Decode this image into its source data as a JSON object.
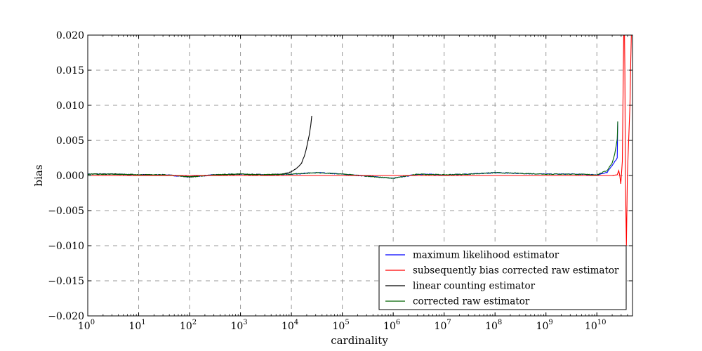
{
  "chart_data": {
    "type": "line",
    "title": "",
    "xlabel": "cardinality",
    "ylabel": "bias",
    "xscale": "log",
    "xlim_exp": [
      0,
      10.7
    ],
    "ylim": [
      -0.02,
      0.02
    ],
    "grid": true,
    "legend_position": "lower-right",
    "x_tick_labels": [
      {
        "base": "10",
        "exp": "0"
      },
      {
        "base": "10",
        "exp": "1"
      },
      {
        "base": "10",
        "exp": "2"
      },
      {
        "base": "10",
        "exp": "3"
      },
      {
        "base": "10",
        "exp": "4"
      },
      {
        "base": "10",
        "exp": "5"
      },
      {
        "base": "10",
        "exp": "6"
      },
      {
        "base": "10",
        "exp": "7"
      },
      {
        "base": "10",
        "exp": "8"
      },
      {
        "base": "10",
        "exp": "9"
      },
      {
        "base": "10",
        "exp": "10"
      }
    ],
    "y_tick_labels": [
      "0.020",
      "0.015",
      "0.010",
      "0.005",
      "0.000",
      "−0.005",
      "−0.010",
      "−0.015",
      "−0.020"
    ],
    "y_tick_values": [
      0.02,
      0.015,
      0.01,
      0.005,
      0,
      -0.005,
      -0.01,
      -0.015,
      -0.02
    ],
    "series": [
      {
        "name": "maximum likelihood estimator",
        "color": "#0000ff",
        "log10_x": [
          0,
          0.5,
          1,
          1.5,
          2,
          2.5,
          3,
          3.5,
          4,
          4.5,
          5,
          5.5,
          6,
          6.5,
          7,
          7.5,
          8,
          8.5,
          9,
          9.5,
          10,
          10.2,
          10.4,
          10.41
        ],
        "y": [
          0.0002,
          0.0002,
          0.0001,
          0.0001,
          -0.0002,
          0.0001,
          0.0002,
          0.0001,
          0.0002,
          0.0004,
          0.0002,
          -0.0001,
          -0.0004,
          0.0002,
          0.0001,
          0.0002,
          0.0004,
          0.0003,
          0.0002,
          0.0002,
          0.0001,
          0.0004,
          0.0025,
          0.0077
        ]
      },
      {
        "name": "subsequently bias corrected raw estimator",
        "color": "#ff0000",
        "log10_x": [
          0,
          2,
          4,
          6,
          8,
          10,
          10.3,
          10.4,
          10.43,
          10.45,
          10.47,
          10.5,
          10.52,
          10.54,
          10.56,
          10.58,
          10.6,
          10.65,
          10.7
        ],
        "y": [
          0,
          0,
          0,
          0,
          0,
          0,
          0,
          0.0001,
          0.0007,
          0,
          -0.0012,
          0.002,
          0.015,
          0.03,
          0.0,
          -0.01,
          0.0002,
          0.01,
          0.03
        ]
      },
      {
        "name": "linear counting estimator",
        "color": "#000000",
        "log10_x": [
          0,
          0.5,
          1,
          1.5,
          2,
          2.5,
          3,
          3.5,
          3.8,
          4,
          4.1,
          4.2,
          4.25,
          4.3,
          4.35,
          4.38,
          4.4
        ],
        "y": [
          0.0002,
          0.0002,
          0.0001,
          0.0001,
          -0.0002,
          0.0001,
          0.0002,
          0.0001,
          0.0002,
          0.0005,
          0.001,
          0.0018,
          0.0027,
          0.004,
          0.0057,
          0.0071,
          0.0085
        ]
      },
      {
        "name": "corrected raw estimator",
        "color": "#006400",
        "log10_x": [
          0,
          0.5,
          1,
          1.5,
          2,
          2.5,
          3,
          3.5,
          4,
          4.5,
          5,
          5.5,
          6,
          6.5,
          7,
          7.5,
          8,
          8.5,
          9,
          9.5,
          10,
          10.2,
          10.3,
          10.35,
          10.4,
          10.41
        ],
        "y": [
          0.0002,
          0.0002,
          0.0001,
          0.0001,
          -0.0002,
          0.0001,
          0.0002,
          0.0001,
          0.0002,
          0.0004,
          0.0002,
          -0.0001,
          -0.0004,
          0.0002,
          0.0001,
          0.0002,
          0.0004,
          0.0003,
          0.0002,
          0.0002,
          0.0001,
          0.0007,
          0.0018,
          0.003,
          0.0052,
          0.0077
        ]
      }
    ]
  }
}
